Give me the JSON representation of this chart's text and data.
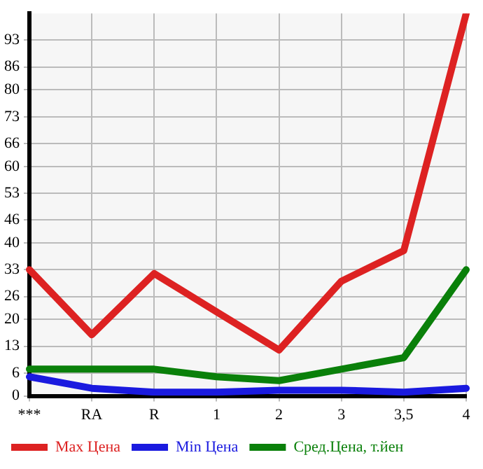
{
  "chart_data": {
    "type": "line",
    "categories": [
      "***",
      "RA",
      "R",
      "1",
      "2",
      "3",
      "3,5",
      "4"
    ],
    "series": [
      {
        "name": "Max Цена",
        "color": "#dd2222",
        "values": [
          33,
          16,
          32,
          22,
          12,
          30,
          38,
          100
        ]
      },
      {
        "name": "Min Цена",
        "color": "#1a1adf",
        "values": [
          5,
          2,
          1,
          1,
          1.5,
          1.5,
          1,
          2
        ]
      },
      {
        "name": "Сред.Цена, т.йен",
        "color": "#0a800a",
        "values": [
          7,
          7,
          7,
          5,
          4,
          7,
          10,
          33
        ]
      }
    ],
    "ylim": [
      0,
      100
    ],
    "yticks": [
      0,
      6,
      13,
      20,
      26,
      33,
      40,
      46,
      53,
      60,
      66,
      73,
      80,
      86,
      93
    ],
    "grid": true,
    "legend": "bottom",
    "marker": "none",
    "line_style": "solid"
  }
}
